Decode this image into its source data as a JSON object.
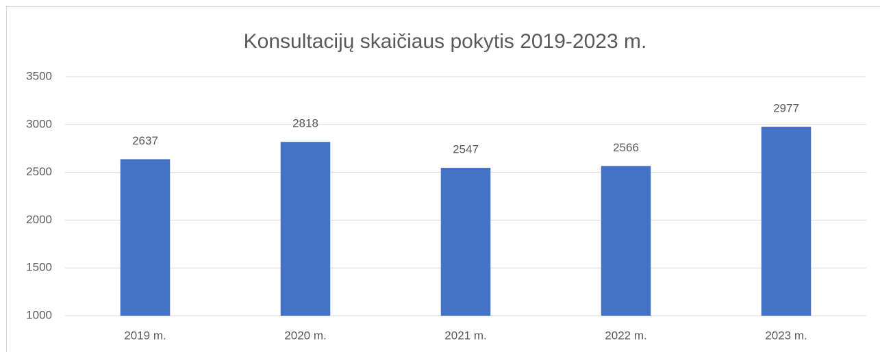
{
  "chart_data": {
    "type": "bar",
    "title": "Konsultacijų skaičiaus pokytis 2019-2023 m.",
    "categories": [
      "2019 m.",
      "2020 m.",
      "2021 m.",
      "2022 m.",
      "2023 m."
    ],
    "values": [
      2637,
      2818,
      2547,
      2566,
      2977
    ],
    "color": "#4472c4",
    "ylim": [
      1000,
      3500
    ],
    "yticks": [
      1000,
      1500,
      2000,
      2500,
      3000,
      3500
    ],
    "grid": true,
    "data_labels": true
  }
}
